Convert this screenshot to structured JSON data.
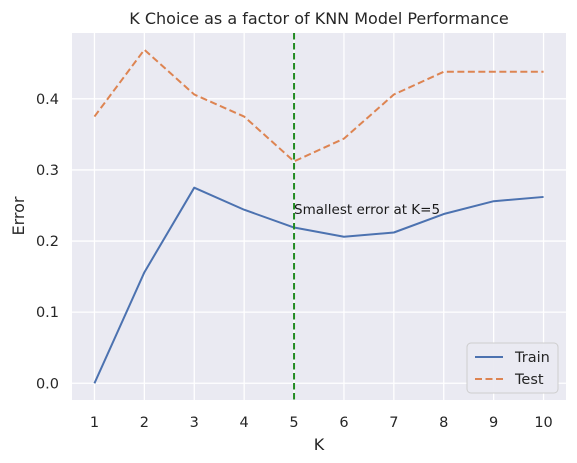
{
  "chart_data": {
    "type": "line",
    "title": "K Choice as a factor of KNN Model Performance",
    "xlabel": "K",
    "ylabel": "Error",
    "x": [
      1,
      2,
      3,
      4,
      5,
      6,
      7,
      8,
      9,
      10
    ],
    "xticks": [
      "1",
      "2",
      "3",
      "4",
      "5",
      "6",
      "7",
      "8",
      "9",
      "10"
    ],
    "yticks": [
      "0.0",
      "0.1",
      "0.2",
      "0.3",
      "0.4"
    ],
    "xlim": [
      0.55,
      10.45
    ],
    "ylim": [
      -0.0235,
      0.4925
    ],
    "series": [
      {
        "name": "Train",
        "values": [
          0.0,
          0.156,
          0.275,
          0.244,
          0.219,
          0.206,
          0.212,
          0.238,
          0.256,
          0.262
        ],
        "color": "#4c72b0",
        "style": "solid"
      },
      {
        "name": "Test",
        "values": [
          0.375,
          0.469,
          0.406,
          0.375,
          0.312,
          0.344,
          0.406,
          0.438,
          0.438,
          0.438
        ],
        "color": "#dd8452",
        "style": "dashed"
      }
    ],
    "vline": {
      "x": 5,
      "color": "#228b22",
      "style": "dashed"
    },
    "annotation": {
      "text": "Smallest error at K=5",
      "x": 5,
      "y": 0.245
    },
    "grid": true,
    "background": "#eaeaf2",
    "legend_position": "lower-right"
  }
}
